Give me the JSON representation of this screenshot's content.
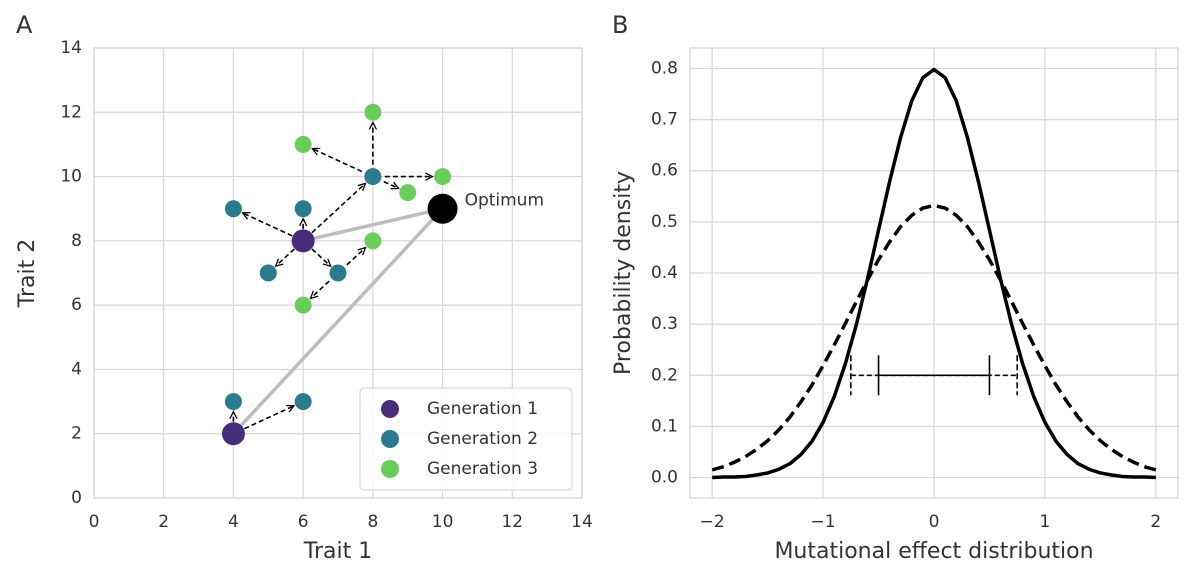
{
  "chart_data": [
    {
      "type": "scatter",
      "panel_label": "A",
      "xlabel": "Trait 1",
      "ylabel": "Trait 2",
      "xlim": [
        0,
        14
      ],
      "ylim": [
        0,
        14
      ],
      "xticks": [
        0,
        2,
        4,
        6,
        8,
        10,
        12,
        14
      ],
      "yticks": [
        0,
        2,
        4,
        6,
        8,
        10,
        12,
        14
      ],
      "grid": true,
      "legend": "lower right",
      "series": [
        {
          "name": "Generation 1",
          "color": "#472c7a",
          "x": [
            6,
            4
          ],
          "y": [
            8,
            2
          ]
        },
        {
          "name": "Generation 2",
          "color": "#2a7b8e",
          "x": [
            4,
            6,
            8,
            5,
            7,
            4,
            6
          ],
          "y": [
            9,
            9,
            10,
            7,
            7,
            3,
            3
          ]
        },
        {
          "name": "Generation 3",
          "color": "#6acd5b",
          "x": [
            6,
            8,
            9,
            10,
            8,
            6
          ],
          "y": [
            11,
            12,
            9.5,
            10,
            8,
            6
          ]
        }
      ],
      "optimum": {
        "x": 10,
        "y": 9,
        "label": "Optimum",
        "color": "#000000"
      },
      "arrows": [
        {
          "from": [
            6,
            8
          ],
          "to": [
            4,
            9
          ]
        },
        {
          "from": [
            6,
            8
          ],
          "to": [
            6,
            9
          ]
        },
        {
          "from": [
            6,
            8
          ],
          "to": [
            8,
            10
          ]
        },
        {
          "from": [
            6,
            8
          ],
          "to": [
            5,
            7
          ]
        },
        {
          "from": [
            6,
            8
          ],
          "to": [
            7,
            7
          ]
        },
        {
          "from": [
            4,
            2
          ],
          "to": [
            4,
            3
          ]
        },
        {
          "from": [
            4,
            2
          ],
          "to": [
            6,
            3
          ]
        },
        {
          "from": [
            8,
            10
          ],
          "to": [
            6,
            11
          ]
        },
        {
          "from": [
            8,
            10
          ],
          "to": [
            8,
            12
          ]
        },
        {
          "from": [
            8,
            10
          ],
          "to": [
            9,
            9.5
          ]
        },
        {
          "from": [
            8,
            10
          ],
          "to": [
            10,
            10
          ]
        },
        {
          "from": [
            7,
            7
          ],
          "to": [
            8,
            8
          ]
        },
        {
          "from": [
            7,
            7
          ],
          "to": [
            6,
            6
          ]
        }
      ]
    },
    {
      "type": "line",
      "panel_label": "B",
      "xlabel": "Mutational effect distribution",
      "ylabel": "Probability density",
      "xlim": [
        -2.2,
        2.2
      ],
      "ylim": [
        -0.04,
        0.84
      ],
      "xticks": [
        {
          "value": -2,
          "label": "−2"
        },
        {
          "value": -1,
          "label": "−1"
        },
        0,
        1,
        2
      ],
      "yticks": [
        {
          "value": 0,
          "label": "0.0"
        },
        0.1,
        0.2,
        0.3,
        0.4,
        0.5,
        0.6,
        0.7,
        0.8
      ],
      "grid": true,
      "x": [
        -2.0,
        -1.9,
        -1.8,
        -1.7,
        -1.6,
        -1.5,
        -1.4,
        -1.3,
        -1.2,
        -1.1,
        -1.0,
        -0.9,
        -0.8,
        -0.7,
        -0.6,
        -0.5,
        -0.4,
        -0.3,
        -0.2,
        -0.1,
        0,
        0.1,
        0.2,
        0.3,
        0.4,
        0.5,
        0.6,
        0.7,
        0.8,
        0.9,
        1.0,
        1.1,
        1.2,
        1.3,
        1.4,
        1.5,
        1.6,
        1.7,
        1.8,
        1.9,
        2.0
      ],
      "series": [
        {
          "color": "#000000",
          "dash": false,
          "values": [
            0.0,
            0.001,
            0.001,
            0.002,
            0.005,
            0.009,
            0.016,
            0.027,
            0.045,
            0.071,
            0.108,
            0.158,
            0.222,
            0.299,
            0.388,
            0.484,
            0.579,
            0.666,
            0.737,
            0.782,
            0.798,
            0.782,
            0.737,
            0.666,
            0.579,
            0.484,
            0.388,
            0.299,
            0.222,
            0.158,
            0.108,
            0.071,
            0.045,
            0.027,
            0.016,
            0.009,
            0.005,
            0.002,
            0.001,
            0.001,
            0.0
          ],
          "errorbar": {
            "center": 0,
            "y": 0.2,
            "halfwidth": 0.5
          }
        },
        {
          "color": "#000000",
          "dash": true,
          "values": [
            0.015,
            0.021,
            0.03,
            0.041,
            0.055,
            0.072,
            0.093,
            0.118,
            0.148,
            0.181,
            0.219,
            0.259,
            0.301,
            0.344,
            0.386,
            0.426,
            0.461,
            0.491,
            0.513,
            0.527,
            0.532,
            0.527,
            0.513,
            0.491,
            0.461,
            0.426,
            0.386,
            0.344,
            0.301,
            0.259,
            0.219,
            0.181,
            0.148,
            0.118,
            0.093,
            0.072,
            0.055,
            0.041,
            0.03,
            0.021,
            0.015
          ],
          "errorbar": {
            "center": 0,
            "y": 0.2,
            "halfwidth": 0.75
          }
        }
      ]
    }
  ]
}
